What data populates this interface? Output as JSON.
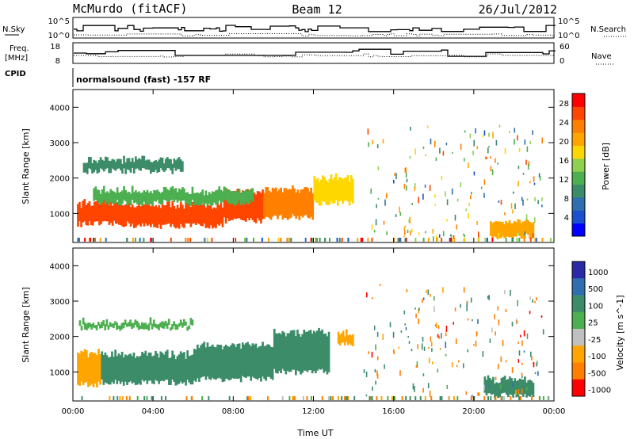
{
  "header": {
    "station": "McMurdo (fitACF)",
    "beam": "Beam 12",
    "date": "26/Jul/2012"
  },
  "top_panels": {
    "nsky_label": "N.Sky",
    "nsky_ticks": [
      "10^5",
      "10^0"
    ],
    "nsearch_label": "N.Search",
    "nsearch_ticks": [
      "10^5",
      "10^0"
    ],
    "freq_label_1": "Freq.",
    "freq_label_2": "[MHz]",
    "freq_ticks": [
      "18",
      "8"
    ],
    "nave_label": "Nave",
    "nave_ticks": [
      "60",
      "0"
    ],
    "cpid_label": "CPID",
    "cpid_value": "normalsound (fast) -157 RF"
  },
  "chart_data": [
    {
      "type": "heatmap",
      "title": "",
      "xlabel": "Time UT",
      "ylabel": "Slant Range [km]",
      "x_ticks": [
        "00:00",
        "04:00",
        "08:00",
        "12:00",
        "16:00",
        "20:00",
        "00:00"
      ],
      "y_ticks": [
        "1000",
        "2000",
        "3000",
        "4000"
      ],
      "xlim": [
        0,
        24
      ],
      "ylim": [
        180,
        4500
      ],
      "colorbar": {
        "label": "Power [dB]",
        "ticks": [
          "4",
          "8",
          "12",
          "16",
          "20",
          "24",
          "28"
        ],
        "range": [
          0,
          30
        ],
        "colors": [
          "#0000ff",
          "#1a4fcf",
          "#2f6fb0",
          "#3c8c6a",
          "#4caf50",
          "#8fd14f",
          "#ffd700",
          "#ffa500",
          "#ff7f00",
          "#ff4500",
          "#ff0000"
        ]
      },
      "regions": [
        {
          "t0": 0.2,
          "t1": 3.0,
          "r0": 700,
          "r1": 1300,
          "v": 27
        },
        {
          "t0": 3.0,
          "t1": 7.5,
          "r0": 650,
          "r1": 1250,
          "v": 25
        },
        {
          "t0": 7.5,
          "t1": 9.5,
          "r0": 800,
          "r1": 1600,
          "v": 26
        },
        {
          "t0": 9.5,
          "t1": 12.0,
          "r0": 900,
          "r1": 1700,
          "v": 24
        },
        {
          "t0": 12.0,
          "t1": 14.0,
          "r0": 1300,
          "r1": 2000,
          "v": 18
        },
        {
          "t0": 1.0,
          "t1": 9.0,
          "r0": 1300,
          "r1": 1650,
          "v": 12
        },
        {
          "t0": 0.5,
          "t1": 5.5,
          "r0": 2200,
          "r1": 2500,
          "v": 9
        },
        {
          "t0": 20.8,
          "t1": 23.0,
          "r0": 350,
          "r1": 800,
          "v": 20
        }
      ]
    },
    {
      "type": "heatmap",
      "title": "",
      "xlabel": "Time UT",
      "ylabel": "Slant Range [km]",
      "x_ticks": [
        "00:00",
        "04:00",
        "08:00",
        "12:00",
        "16:00",
        "20:00",
        "00:00"
      ],
      "y_ticks": [
        "1000",
        "2000",
        "3000",
        "4000"
      ],
      "xlim": [
        0,
        24
      ],
      "ylim": [
        180,
        4500
      ],
      "colorbar": {
        "label": "Velocity [m s^-1]",
        "ticks": [
          "1000",
          "500",
          "100",
          "25",
          "-25",
          "-100",
          "-500",
          "-1000"
        ],
        "colors": [
          "#2a2aa8",
          "#2f6fb0",
          "#3c8c6a",
          "#4caf50",
          "#c0c0c0",
          "#ffa500",
          "#ff7f00",
          "#ff0000"
        ]
      },
      "regions": [
        {
          "t0": 0.2,
          "t1": 1.4,
          "r0": 650,
          "r1": 1550,
          "v": -100
        },
        {
          "t0": 1.4,
          "t1": 6.0,
          "r0": 700,
          "r1": 1500,
          "v": 100
        },
        {
          "t0": 6.0,
          "t1": 10.0,
          "r0": 800,
          "r1": 1750,
          "v": 100
        },
        {
          "t0": 10.0,
          "t1": 12.8,
          "r0": 1000,
          "r1": 2100,
          "v": 100
        },
        {
          "t0": 0.3,
          "t1": 6.0,
          "r0": 2250,
          "r1": 2400,
          "v": 25
        },
        {
          "t0": 13.2,
          "t1": 14.0,
          "r0": 1800,
          "r1": 2100,
          "v": -100
        },
        {
          "t0": 20.5,
          "t1": 23.0,
          "r0": 350,
          "r1": 800,
          "v": 100
        }
      ]
    }
  ]
}
